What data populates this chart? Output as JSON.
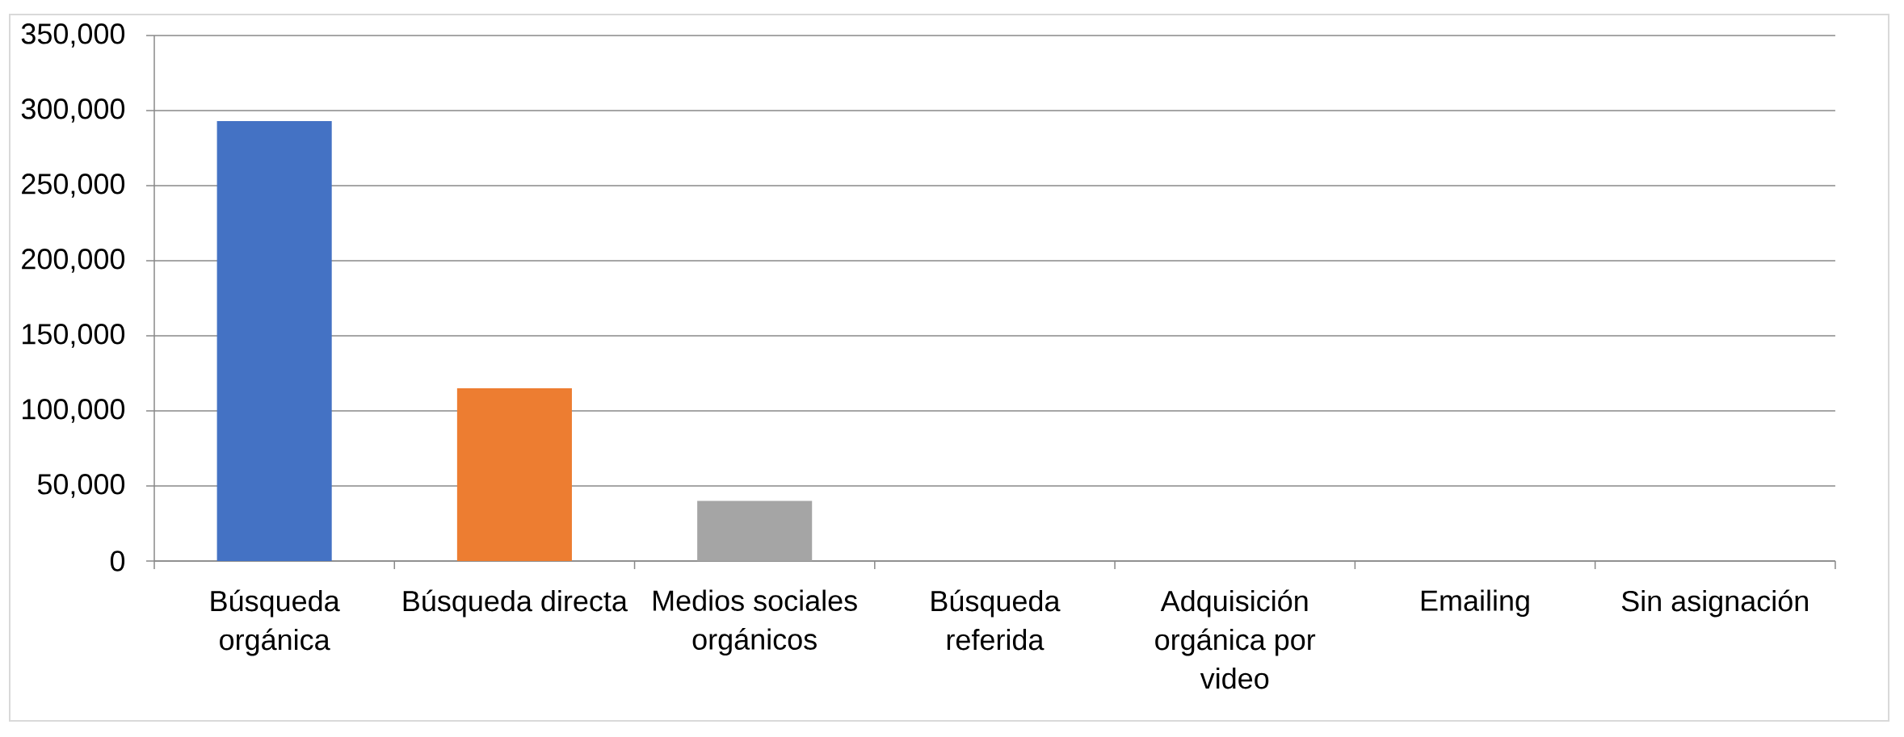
{
  "chart_data": {
    "type": "bar",
    "categories": [
      "Búsqueda orgánica",
      "Búsqueda directa",
      "Medios sociales orgánicos",
      "Búsqueda referida",
      "Adquisición orgánica por video",
      "Emailing",
      "Sin asignación"
    ],
    "values": [
      293000,
      115000,
      40000,
      0,
      0,
      0,
      0
    ],
    "colors": [
      "#4472c4",
      "#ed7d31",
      "#a5a5a5",
      "#ffc000",
      "#5b9bd5",
      "#70ad47",
      "#264478"
    ],
    "ylim": [
      0,
      350000
    ],
    "yticks": [
      0,
      {
        "value": 50000,
        "label": "50,000"
      },
      {
        "value": 100000,
        "label": "100,000"
      },
      {
        "value": 150000,
        "label": "150,000"
      },
      {
        "value": 200000,
        "label": "200,000"
      },
      {
        "value": 250000,
        "label": "250,000"
      },
      {
        "value": 300000,
        "label": "300,000"
      },
      {
        "value": 350000,
        "label": "350,000"
      }
    ],
    "grid": "y"
  }
}
